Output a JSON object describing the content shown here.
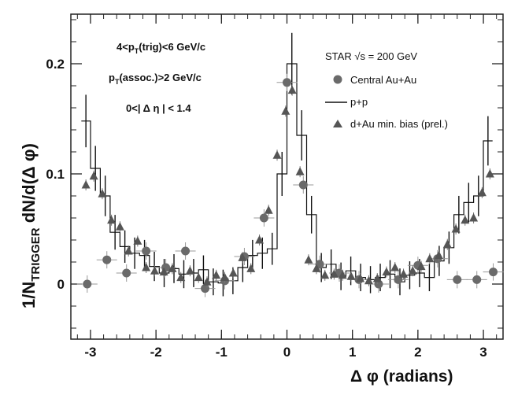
{
  "chart_data": {
    "type": "scatter",
    "xlabel_symbol": "Δ φ",
    "xlabel_unit": "(radians)",
    "ylabel_main": "1/N",
    "ylabel_sub": "TRIGGER",
    "ylabel_tail": "dN/d(Δ φ)",
    "xlim": [
      -3.3,
      3.3
    ],
    "ylim": [
      -0.05,
      0.245
    ],
    "xticks": [
      -3,
      -2,
      -1,
      0,
      1,
      2,
      3
    ],
    "yticks": [
      0,
      0.1,
      0.2
    ],
    "ytick_labels": [
      "0",
      "0.1",
      "0.2"
    ],
    "annotations": {
      "cut1_a": "4<p",
      "cut1_sub": "T",
      "cut1_b": "(trig)<6 GeV/c",
      "cut2_a": "p",
      "cut2_sub": "T",
      "cut2_b": "(assoc.)>2 GeV/c",
      "cut3": "0<| Δ η | < 1.4",
      "experiment_a": "STAR ",
      "experiment_sqrt": "√s",
      "experiment_b": " = 200 GeV"
    },
    "series": [
      {
        "name": "Central Au+Au",
        "marker": "circle",
        "x": [
          -3.05,
          -2.75,
          -2.45,
          -2.15,
          -1.85,
          -1.55,
          -1.25,
          -0.95,
          -0.65,
          -0.35,
          0.0,
          0.25,
          0.5,
          0.8,
          1.1,
          1.4,
          1.7,
          2.0,
          2.3,
          2.6,
          2.9,
          3.15
        ],
        "y": [
          0.0,
          0.022,
          0.01,
          0.03,
          0.015,
          0.03,
          -0.004,
          0.003,
          0.025,
          0.06,
          0.183,
          0.09,
          0.018,
          0.01,
          0.004,
          0.0,
          0.004,
          0.017,
          0.023,
          0.004,
          0.004,
          0.011
        ]
      },
      {
        "name": "p+p",
        "marker": "step",
        "bin_edges": [
          -3.14,
          -3.0,
          -2.85,
          -2.7,
          -2.55,
          -2.4,
          -2.25,
          -2.1,
          -1.95,
          -1.8,
          -1.65,
          -1.5,
          -1.35,
          -1.2,
          -1.05,
          -0.9,
          -0.75,
          -0.6,
          -0.45,
          -0.3,
          -0.15,
          0.0,
          0.15,
          0.3,
          0.45,
          0.6,
          0.75,
          0.9,
          1.05,
          1.2,
          1.35,
          1.5,
          1.65,
          1.8,
          1.95,
          2.1,
          2.25,
          2.4,
          2.55,
          2.7,
          2.85,
          3.0,
          3.14
        ],
        "values": [
          0.148,
          0.105,
          0.08,
          0.047,
          0.034,
          0.028,
          0.026,
          0.016,
          0.01,
          0.014,
          0.009,
          0.01,
          0.013,
          0.002,
          0.001,
          0.003,
          0.015,
          0.026,
          0.028,
          0.032,
          0.1,
          0.2,
          0.135,
          0.063,
          0.015,
          0.018,
          0.007,
          0.012,
          0.006,
          0.004,
          0.006,
          0.009,
          0.002,
          0.008,
          0.01,
          0.006,
          0.021,
          0.033,
          0.063,
          0.074,
          0.08,
          0.13
        ]
      },
      {
        "name": "d+Au min. bias (prel.)",
        "marker": "triangle",
        "x": [
          -3.07,
          -2.95,
          -2.82,
          -2.68,
          -2.55,
          -2.42,
          -2.28,
          -2.15,
          -2.02,
          -1.88,
          -1.75,
          -1.62,
          -1.48,
          -1.35,
          -1.22,
          -1.08,
          -0.95,
          -0.82,
          -0.68,
          -0.55,
          -0.42,
          -0.28,
          -0.15,
          -0.02,
          0.08,
          0.2,
          0.33,
          0.45,
          0.58,
          0.72,
          0.85,
          0.98,
          1.12,
          1.25,
          1.38,
          1.52,
          1.65,
          1.78,
          1.92,
          2.05,
          2.18,
          2.32,
          2.45,
          2.58,
          2.72,
          2.85,
          2.98,
          3.1
        ],
        "y": [
          0.09,
          0.098,
          0.082,
          0.058,
          0.052,
          0.03,
          0.039,
          0.015,
          0.012,
          0.011,
          0.014,
          0.006,
          0.012,
          0.006,
          0.002,
          0.008,
          0.006,
          0.01,
          0.024,
          0.014,
          0.04,
          0.067,
          0.117,
          0.157,
          0.176,
          0.102,
          0.022,
          0.014,
          0.008,
          0.009,
          0.008,
          0.007,
          0.005,
          0.003,
          0.005,
          0.011,
          0.015,
          0.009,
          0.012,
          0.016,
          0.023,
          0.026,
          0.036,
          0.05,
          0.058,
          0.06,
          0.083,
          0.1
        ]
      }
    ]
  }
}
